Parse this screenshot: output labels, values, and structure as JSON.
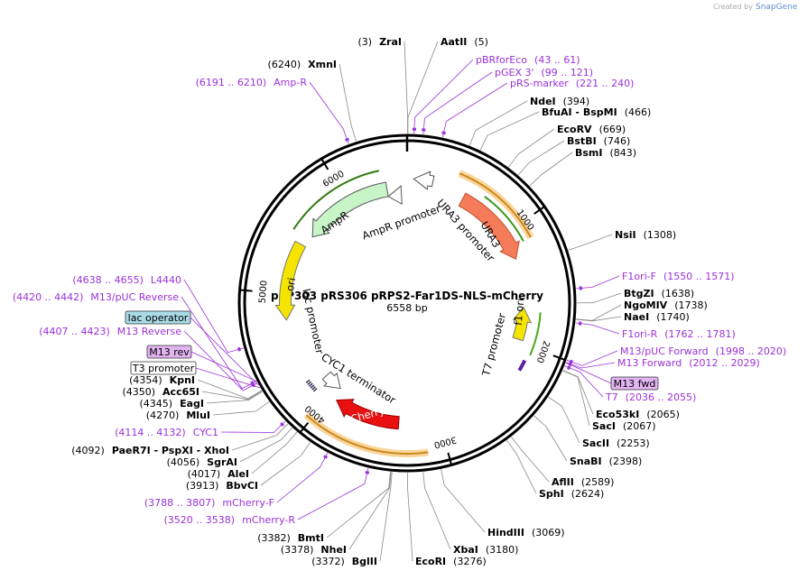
{
  "credit": {
    "prefix": "Created by",
    "brand": "SnapGene"
  },
  "plasmid": {
    "name": "pSP303 pRS306 pRPS2-Far1DS-NLS-mCherry",
    "length": "6558 bp"
  },
  "ticks": [
    1000,
    2000,
    3000,
    4000,
    5000,
    6000
  ],
  "features": [
    {
      "label": "URA3"
    },
    {
      "label": "URA3 promoter"
    },
    {
      "label": "AmpR"
    },
    {
      "label": "AmpR promoter"
    },
    {
      "label": "ori"
    },
    {
      "label": "lac promoter"
    },
    {
      "label": "f1 ori"
    },
    {
      "label": "T7 promoter"
    },
    {
      "label": "CYC1 terminator"
    },
    {
      "label": "mCherry"
    }
  ],
  "boxed_features": [
    {
      "label": "lac operator"
    },
    {
      "label": "M13 rev"
    },
    {
      "label": "T3 promoter"
    },
    {
      "label": "M13 fwd"
    }
  ],
  "enzymes": [
    {
      "name": "ZraI",
      "position": "(3)"
    },
    {
      "name": "AatII",
      "position": "(5)"
    },
    {
      "name": "XmnI",
      "position": "(6240)"
    },
    {
      "name": "NdeI",
      "position": "(394)"
    },
    {
      "name": "BfuAI - BspMI",
      "position": "(466)"
    },
    {
      "name": "EcoRV",
      "position": "(669)"
    },
    {
      "name": "BstBI",
      "position": "(746)"
    },
    {
      "name": "BsmI",
      "position": "(843)"
    },
    {
      "name": "NsiI",
      "position": "(1308)"
    },
    {
      "name": "BtgZI",
      "position": "(1638)"
    },
    {
      "name": "NgoMIV",
      "position": "(1738)"
    },
    {
      "name": "NaeI",
      "position": "(1740)"
    },
    {
      "name": "Eco53kI",
      "position": "(2065)"
    },
    {
      "name": "SacI",
      "position": "(2067)"
    },
    {
      "name": "SacII",
      "position": "(2253)"
    },
    {
      "name": "SnaBI",
      "position": "(2398)"
    },
    {
      "name": "AflII",
      "position": "(2589)"
    },
    {
      "name": "SphI",
      "position": "(2624)"
    },
    {
      "name": "HindIII",
      "position": "(3069)"
    },
    {
      "name": "XbaI",
      "position": "(3180)"
    },
    {
      "name": "EcoRI",
      "position": "(3276)"
    },
    {
      "name": "BglII",
      "position": "(3372)"
    },
    {
      "name": "NheI",
      "position": "(3378)"
    },
    {
      "name": "BmtI",
      "position": "(3382)"
    },
    {
      "name": "BbvCI",
      "position": "(3913)"
    },
    {
      "name": "AleI",
      "position": "(4017)"
    },
    {
      "name": "SgrAI",
      "position": "(4056)"
    },
    {
      "name": "PaeR7I - PspXI - XhoI",
      "position": "(4092)"
    },
    {
      "name": "MluI",
      "position": "(4270)"
    },
    {
      "name": "EagI",
      "position": "(4345)"
    },
    {
      "name": "Acc65I",
      "position": "(4350)"
    },
    {
      "name": "KpnI",
      "position": "(4354)"
    }
  ],
  "primers": [
    {
      "name": "Amp-R",
      "range": "(6191 .. 6210)"
    },
    {
      "name": "pBRforEco",
      "range": "(43 .. 61)"
    },
    {
      "name": "pGEX 3'",
      "range": "(99 .. 121)"
    },
    {
      "name": "pRS-marker",
      "range": "(221 .. 240)"
    },
    {
      "name": "F1ori-F",
      "range": "(1550 .. 1571)"
    },
    {
      "name": "F1ori-R",
      "range": "(1762 .. 1781)"
    },
    {
      "name": "M13/pUC Forward",
      "range": "(1998 .. 2020)"
    },
    {
      "name": "M13 Forward",
      "range": "(2012 .. 2029)"
    },
    {
      "name": "T7",
      "range": "(2036 .. 2055)"
    },
    {
      "name": "mCherry-R",
      "range": "(3520 .. 3538)"
    },
    {
      "name": "mCherry-F",
      "range": "(3788 .. 3807)"
    },
    {
      "name": "CYC1",
      "range": "(4114 .. 4132)"
    },
    {
      "name": "M13 Reverse",
      "range": "(4407 .. 4423)"
    },
    {
      "name": "M13/pUC Reverse",
      "range": "(4420 .. 4442)"
    },
    {
      "name": "L4440",
      "range": "(4638 .. 4655)"
    }
  ]
}
